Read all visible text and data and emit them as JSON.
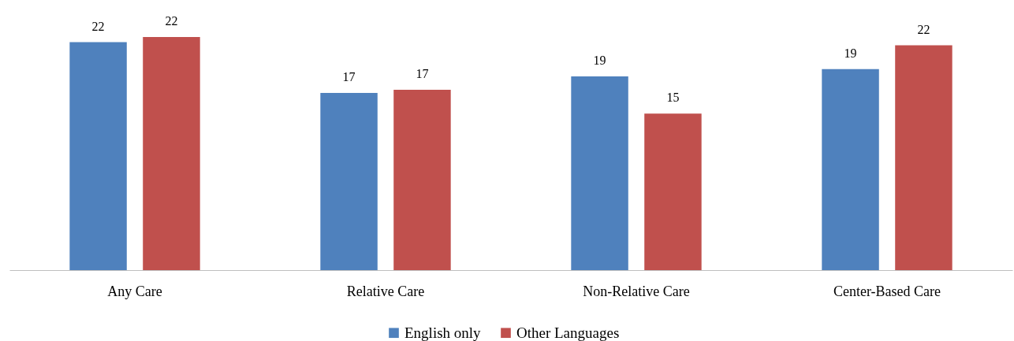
{
  "chart_data": {
    "type": "bar",
    "categories": [
      "Any Care",
      "Relative Care",
      "Non-Relative Care",
      "Center-Based Care"
    ],
    "series": [
      {
        "name": "English only",
        "color": "#4f81bd",
        "values": [
          22.0,
          17.1,
          18.7,
          19.4
        ],
        "value_labels": [
          "22",
          "17",
          "19",
          "19"
        ]
      },
      {
        "name": "Other Languages",
        "color": "#c0504d",
        "values": [
          22.5,
          17.4,
          15.1,
          21.7
        ],
        "value_labels": [
          "22",
          "17",
          "15",
          "22"
        ]
      }
    ],
    "legend": "bottom",
    "grid": false
  }
}
